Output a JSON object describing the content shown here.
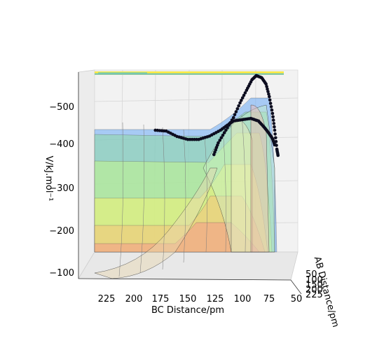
{
  "chart_data": {
    "type": "surface",
    "title": "",
    "xlabel": "BC Distance/pm",
    "ylabel": "AB Distance/pm",
    "zlabel": "V/kJ.mol⁻¹",
    "x_ticks": [
      "225",
      "200",
      "175",
      "150",
      "125",
      "100",
      "75",
      "50"
    ],
    "y_ticks": [
      "50",
      "100",
      "150",
      "200",
      "225"
    ],
    "z_ticks": [
      "−500",
      "−400",
      "−300",
      "−200",
      "−100"
    ],
    "zlim": [
      -80,
      -580
    ],
    "contour_levels": [
      -440,
      -400,
      -350,
      -300,
      -250,
      -200,
      -150,
      -100
    ],
    "trajectory": {
      "points_1": [
        [
          180,
          -440
        ],
        [
          170,
          -438
        ],
        [
          160,
          -425
        ],
        [
          150,
          -418
        ],
        [
          140,
          -418
        ],
        [
          130,
          -426
        ],
        [
          120,
          -440
        ],
        [
          112,
          -455
        ],
        [
          108,
          -462
        ],
        [
          100,
          -465
        ],
        [
          92,
          -468
        ],
        [
          85,
          -462
        ],
        [
          80,
          -448
        ],
        [
          76,
          -435
        ],
        [
          72,
          -420
        ],
        [
          70,
          -405
        ]
      ],
      "points_2": [
        [
          126,
          -382
        ],
        [
          122,
          -410
        ],
        [
          115,
          -440
        ],
        [
          108,
          -470
        ],
        [
          102,
          -505
        ],
        [
          96,
          -535
        ],
        [
          91,
          -560
        ],
        [
          87,
          -570
        ],
        [
          82,
          -565
        ],
        [
          78,
          -550
        ],
        [
          75,
          -520
        ],
        [
          72,
          -480
        ],
        [
          70,
          -440
        ],
        [
          68,
          -395
        ],
        [
          67,
          -380
        ]
      ]
    }
  }
}
